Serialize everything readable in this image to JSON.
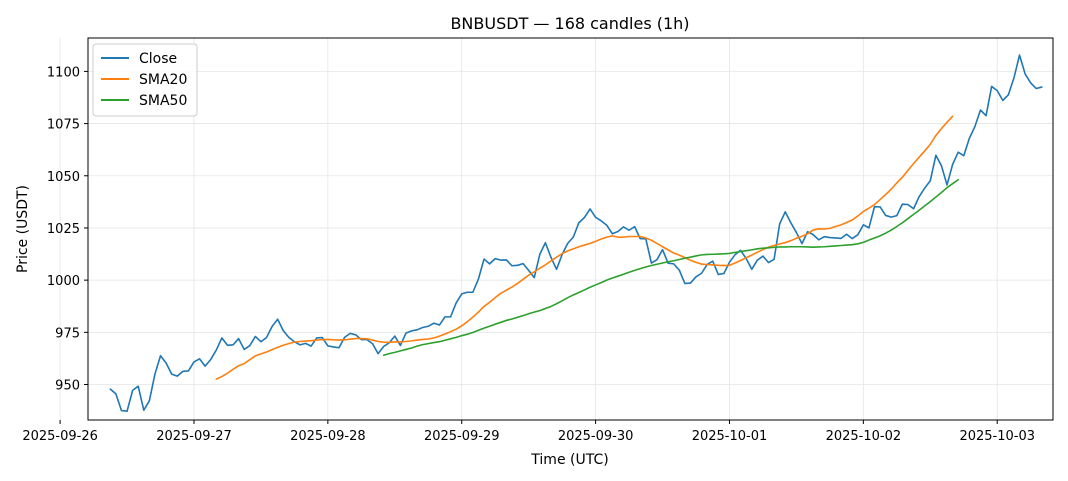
{
  "chart_data": {
    "type": "line",
    "title": "BNBUSDT — 168 candles (1h)",
    "xlabel": "Time (UTC)",
    "ylabel": "Price (USDT)",
    "ylim": [
      933,
      1116
    ],
    "xlim": [
      "2025-09-26T05:00:00",
      "2025-10-03T10:00:00"
    ],
    "grid": true,
    "legend_position": "upper-left",
    "x_ticks": [
      "2025-09-26",
      "2025-09-27",
      "2025-09-28",
      "2025-09-29",
      "2025-09-30",
      "2025-10-01",
      "2025-10-02",
      "2025-10-03"
    ],
    "y_ticks": [
      950,
      975,
      1000,
      1025,
      1050,
      1075,
      1100
    ],
    "x_start": "2025-09-26T09:00:00",
    "step_hours": 1,
    "series": [
      {
        "name": "Close",
        "color": "#1f77b4",
        "values": [
          947.8,
          945.5,
          937.5,
          937.2,
          947.2,
          949.2,
          937.7,
          942.2,
          955.0,
          963.8,
          960.3,
          955.0,
          954.0,
          956.3,
          956.5,
          960.8,
          962.3,
          958.8,
          962.0,
          966.5,
          972.3,
          968.8,
          969.0,
          972.0,
          966.8,
          968.6,
          973.0,
          970.5,
          972.5,
          977.8,
          981.3,
          975.8,
          972.6,
          970.5,
          969.0,
          969.7,
          968.4,
          972.3,
          972.5,
          968.5,
          968.0,
          967.6,
          972.6,
          974.5,
          973.8,
          971.5,
          971.5,
          969.6,
          964.8,
          968.2,
          970.0,
          973.2,
          968.7,
          974.6,
          975.7,
          976.2,
          977.3,
          977.9,
          979.4,
          978.5,
          982.4,
          982.4,
          989.1,
          993.4,
          994.2,
          994.2,
          1000.6,
          1010.1,
          1007.8,
          1010.3,
          1009.6,
          1009.7,
          1006.9,
          1007.1,
          1007.9,
          1004.7,
          1001.2,
          1012.4,
          1017.9,
          1010.9,
          1005.2,
          1012.3,
          1017.6,
          1020.6,
          1027.5,
          1030.0,
          1034.1,
          1030.1,
          1028.4,
          1026.3,
          1022.2,
          1023.3,
          1025.5,
          1023.9,
          1025.6,
          1019.9,
          1019.8,
          1008.2,
          1009.8,
          1014.6,
          1008.1,
          1007.8,
          1004.8,
          998.4,
          998.6,
          1001.6,
          1003.3,
          1007.5,
          1009.1,
          1002.7,
          1003.2,
          1008.6,
          1012.2,
          1014.3,
          1010.3,
          1005.2,
          1009.6,
          1011.5,
          1008.4,
          1010.0,
          1027.0,
          1032.7,
          1027.5,
          1022.8,
          1017.5,
          1023.2,
          1021.8,
          1019.3,
          1020.8,
          1020.4,
          1020.2,
          1020.0,
          1022.0,
          1019.9,
          1021.7,
          1026.5,
          1025.0,
          1035.2,
          1035.1,
          1031.0,
          1030.2,
          1030.9,
          1036.4,
          1036.2,
          1034.2,
          1040.0,
          1044.1,
          1047.6,
          1059.8,
          1054.8,
          1045.6,
          1055.4,
          1061.3,
          1059.6,
          1067.9,
          1073.6,
          1081.5,
          1078.8,
          1092.8,
          1090.8,
          1086.1,
          1088.8,
          1096.9,
          1107.8,
          1098.8,
          1094.5,
          1091.8,
          1092.5
        ]
      },
      {
        "name": "SMA20",
        "color": "#ff7f0e",
        "values": [
          null,
          null,
          null,
          null,
          null,
          null,
          null,
          null,
          null,
          null,
          null,
          null,
          null,
          null,
          null,
          null,
          null,
          null,
          null,
          952.6,
          953.8,
          955.4,
          957.3,
          959.0,
          960.0,
          961.9,
          963.7,
          964.7,
          965.6,
          966.7,
          967.8,
          968.8,
          969.6,
          970.3,
          970.6,
          970.8,
          971.0,
          971.3,
          971.5,
          971.6,
          971.4,
          971.3,
          971.4,
          971.7,
          972.0,
          972.0,
          971.9,
          971.3,
          970.6,
          970.3,
          970.2,
          970.4,
          970.4,
          970.6,
          970.9,
          971.3,
          971.6,
          971.8,
          972.3,
          973.2,
          974.2,
          975.3,
          976.5,
          978.1,
          980.1,
          982.3,
          984.7,
          987.4,
          989.4,
          991.6,
          993.7,
          995.2,
          996.7,
          998.4,
          1000.4,
          1002.4,
          1004.0,
          1005.7,
          1007.3,
          1009.2,
          1011.0,
          1012.7,
          1014.0,
          1015.0,
          1016.0,
          1016.8,
          1017.6,
          1018.6,
          1019.7,
          1020.6,
          1021.2,
          1020.6,
          1020.6,
          1020.9,
          1020.9,
          1020.9,
          1020.2,
          1019.1,
          1017.6,
          1016.0,
          1014.5,
          1013.0,
          1012.0,
          1010.8,
          1009.5,
          1008.5,
          1007.7,
          1007.5,
          1007.3,
          1007.1,
          1007.0,
          1007.1,
          1008.2,
          1009.4,
          1010.8,
          1012.0,
          1013.4,
          1014.6,
          1015.8,
          1016.6,
          1017.3,
          1018.0,
          1018.9,
          1020.1,
          1021.0,
          1022.2,
          1024.0,
          1024.6,
          1024.5,
          1024.8,
          1025.7,
          1026.5,
          1027.6,
          1028.8,
          1030.7,
          1032.9,
          1034.5,
          1036.2,
          1038.6,
          1041.0,
          1043.6,
          1046.6,
          1049.3,
          1052.6,
          1055.8,
          1058.9,
          1061.9,
          1065.1,
          1069.3,
          1072.6,
          1075.6,
          1078.5
        ]
      },
      {
        "name": "SMA50",
        "color": "#2ca02c",
        "values": [
          null,
          null,
          null,
          null,
          null,
          null,
          null,
          null,
          null,
          null,
          null,
          null,
          null,
          null,
          null,
          null,
          null,
          null,
          null,
          null,
          null,
          null,
          null,
          null,
          null,
          null,
          null,
          null,
          null,
          null,
          null,
          null,
          null,
          null,
          null,
          null,
          null,
          null,
          null,
          null,
          null,
          null,
          null,
          null,
          null,
          null,
          null,
          null,
          null,
          964.0,
          964.8,
          965.4,
          966.1,
          966.8,
          967.5,
          968.4,
          969.1,
          969.6,
          970.1,
          970.5,
          971.2,
          971.9,
          972.6,
          973.4,
          974.1,
          974.9,
          976.0,
          977.0,
          977.9,
          978.9,
          979.8,
          980.7,
          981.4,
          982.2,
          983.0,
          983.9,
          984.7,
          985.4,
          986.4,
          987.4,
          988.7,
          990.1,
          991.6,
          992.9,
          994.1,
          995.3,
          996.6,
          997.7,
          998.8,
          1000.0,
          1001.0,
          1001.9,
          1002.8,
          1003.8,
          1004.7,
          1005.5,
          1006.3,
          1007.0,
          1007.6,
          1008.2,
          1008.8,
          1009.3,
          1009.9,
          1010.5,
          1011.0,
          1011.6,
          1012.1,
          1012.3,
          1012.4,
          1012.5,
          1012.6,
          1012.8,
          1013.3,
          1013.7,
          1014.1,
          1014.5,
          1015.0,
          1015.3,
          1015.5,
          1015.7,
          1015.9,
          1015.9,
          1016.0,
          1016.0,
          1016.0,
          1015.9,
          1015.8,
          1015.9,
          1016.0,
          1016.2,
          1016.4,
          1016.6,
          1016.8,
          1017.0,
          1017.4,
          1018.1,
          1019.2,
          1020.2,
          1021.2,
          1022.5,
          1024.0,
          1025.7,
          1027.5,
          1029.5,
          1031.5,
          1033.5,
          1035.6,
          1037.6,
          1039.8,
          1042.0,
          1044.3,
          1046.2,
          1048.1
        ]
      }
    ]
  }
}
